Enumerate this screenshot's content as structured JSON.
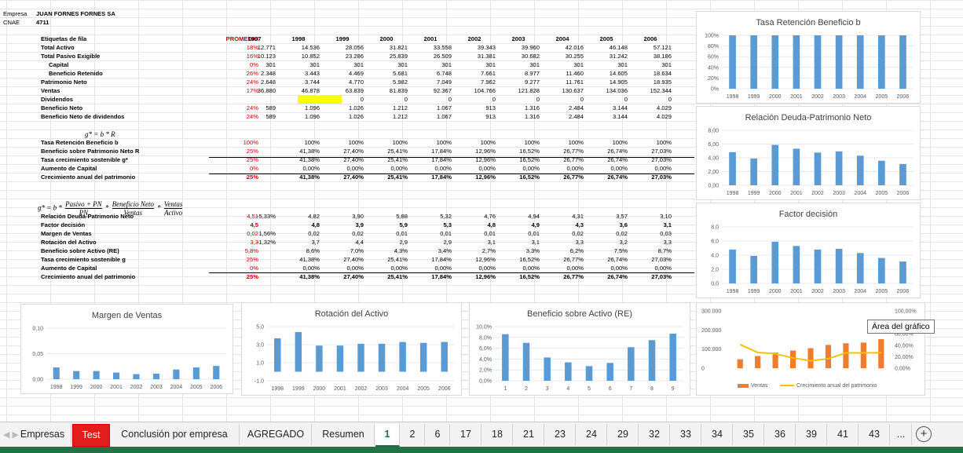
{
  "header": {
    "empresa_label": "Empresa",
    "empresa": "JUAN FORNES FORNES SA",
    "cnae_label": "CNAE",
    "cnae": "4711"
  },
  "table1": {
    "head": [
      "Etiquetas de fila",
      "PROMEDIO",
      "1997",
      "1998",
      "1999",
      "2000",
      "2001",
      "2002",
      "2003",
      "2004",
      "2005",
      "2006"
    ],
    "rows": [
      {
        "label": "Total Activo",
        "avg": "18%",
        "vals": [
          "12.771",
          "14.536",
          "28.056",
          "31.821",
          "33.558",
          "39.343",
          "39.960",
          "42.016",
          "46.148",
          "57.121"
        ]
      },
      {
        "label": "Total Pasivo Exigible",
        "avg": "16%",
        "vals": [
          "10.123",
          "10.852",
          "23.286",
          "25.839",
          "26.509",
          "31.381",
          "30.682",
          "30.255",
          "31.242",
          "38.186"
        ]
      },
      {
        "label": "Capital",
        "avg": "0%",
        "vals": [
          "301",
          "301",
          "301",
          "301",
          "301",
          "301",
          "301",
          "301",
          "301",
          "301"
        ]
      },
      {
        "label": "Beneficio Retenido",
        "avg": "26%",
        "vals": [
          "2.348",
          "3.443",
          "4.469",
          "5.681",
          "6.748",
          "7.661",
          "8.977",
          "11.460",
          "14.605",
          "18.634"
        ]
      },
      {
        "label": "Patrimonio Neto",
        "avg": "24%",
        "vals": [
          "2.648",
          "3.744",
          "4.770",
          "5.982",
          "7.049",
          "7.962",
          "9.277",
          "11.761",
          "14.905",
          "18.935"
        ]
      },
      {
        "label": "Ventas",
        "avg": "17%",
        "vals": [
          "36.880",
          "46.878",
          "63.839",
          "81.839",
          "92.367",
          "104.766",
          "121.828",
          "130.637",
          "134.036",
          "152.344"
        ]
      },
      {
        "label": "Dividendos",
        "avg": "",
        "vals": [
          "",
          "0",
          "0",
          "0",
          "0",
          "0",
          "0",
          "0",
          "0",
          "0"
        ]
      },
      {
        "label": "Beneficio Neto",
        "avg": "24%",
        "vals": [
          "589",
          "1.096",
          "1.026",
          "1.212",
          "1.067",
          "913",
          "1.316",
          "2.484",
          "3.144",
          "4.029"
        ]
      },
      {
        "label": "Beneficio Neto de dividendos",
        "avg": "24%",
        "vals": [
          "589",
          "1.096",
          "1.026",
          "1.212",
          "1.067",
          "913",
          "1.316",
          "2.484",
          "3.144",
          "4.029"
        ]
      }
    ]
  },
  "formula1": "g* = b * R",
  "table2": {
    "rows": [
      {
        "label": "Tasa Retención Beneficio b",
        "avg": "100%",
        "vals": [
          "",
          "100%",
          "100%",
          "100%",
          "100%",
          "100%",
          "100%",
          "100%",
          "100%",
          "100%"
        ]
      },
      {
        "label": "Beneficio sobre Patrimonio Neto R",
        "avg": "25%",
        "vals": [
          "",
          "41,38%",
          "27,40%",
          "25,41%",
          "17,84%",
          "12,96%",
          "16,52%",
          "26,77%",
          "26,74%",
          "27,03%"
        ]
      },
      {
        "label": "Tasa crecimiento sostenible g*",
        "avg": "25%",
        "vals": [
          "",
          "41,38%",
          "27,40%",
          "25,41%",
          "17,84%",
          "12,96%",
          "16,52%",
          "26,77%",
          "26,74%",
          "27,03%"
        ]
      },
      {
        "label": "Aumento de Capital",
        "avg": "0%",
        "vals": [
          "",
          "0,00%",
          "0,00%",
          "0,00%",
          "0,00%",
          "0,00%",
          "0,00%",
          "0,00%",
          "0,00%",
          "0,00%"
        ]
      },
      {
        "label": "Crecimiento anual del patrimonio",
        "avg": "25%",
        "vals": [
          "",
          "41,38%",
          "27,40%",
          "25,41%",
          "17,84%",
          "12,96%",
          "16,52%",
          "26,77%",
          "26,74%",
          "27,03%"
        ]
      }
    ]
  },
  "formula2": {
    "lhs": "g* = b *",
    "f1n": "Pasivo + PN",
    "f1d": "PN",
    "f2n": "Beneficio Neto",
    "f2d": "Ventas",
    "f3n": "Ventas",
    "f3d": "Activo"
  },
  "table3": {
    "rows": [
      {
        "label": "Relación Deuda-Patrimonio Neto",
        "avg": "4,51",
        "vals": [
          "-5,33%",
          "4,82",
          "3,90",
          "5,88",
          "5,32",
          "4,76",
          "4,94",
          "4,31",
          "3,57",
          "3,10"
        ]
      },
      {
        "label": "Factor decisión",
        "avg": "4,5",
        "vals": [
          "",
          "4,8",
          "3,9",
          "5,9",
          "5,3",
          "4,8",
          "4,9",
          "4,3",
          "3,6",
          "3,1"
        ]
      },
      {
        "label": "Margen de Ventas",
        "avg": "0,02",
        "vals": [
          "1,56%",
          "0,02",
          "0,02",
          "0,01",
          "0,01",
          "0,01",
          "0,01",
          "0,02",
          "0,02",
          "0,03"
        ]
      },
      {
        "label": "Rotación del Activo",
        "avg": "3,3",
        "vals": [
          "-1,32%",
          "3,7",
          "4,4",
          "2,9",
          "2,9",
          "3,1",
          "3,1",
          "3,3",
          "3,2",
          "3,3"
        ]
      },
      {
        "label": "Beneficio sobre Activo (RE)",
        "avg": "5,8%",
        "vals": [
          "",
          "8,6%",
          "7,0%",
          "4,3%",
          "3,4%",
          "2,7%",
          "3,3%",
          "6,2%",
          "7,5%",
          "8,7%"
        ]
      },
      {
        "label": "Tasa crecimiento sostenible g",
        "avg": "25%",
        "vals": [
          "",
          "41,38%",
          "27,40%",
          "25,41%",
          "17,84%",
          "12,96%",
          "16,52%",
          "26,77%",
          "26,74%",
          "27,03%"
        ]
      },
      {
        "label": "Aumento de Capital",
        "avg": "0%",
        "vals": [
          "",
          "0,00%",
          "0,00%",
          "0,00%",
          "0,00%",
          "0,00%",
          "0,00%",
          "0,00%",
          "0,00%",
          "0,00%"
        ]
      },
      {
        "label": "Crecimiento anual del patrimonio",
        "avg": "25%",
        "vals": [
          "",
          "41,38%",
          "27,40%",
          "25,41%",
          "17,84%",
          "12,96%",
          "16,52%",
          "26,77%",
          "26,74%",
          "27,03%"
        ]
      }
    ]
  },
  "tooltip": "Área del gráfico",
  "tabs": [
    "Empresas",
    "Test",
    "Conclusión por empresa",
    "AGREGADO",
    "Resumen",
    "1",
    "2",
    "6",
    "17",
    "18",
    "21",
    "23",
    "24",
    "29",
    "32",
    "33",
    "34",
    "35",
    "36",
    "39",
    "41",
    "43",
    "..."
  ],
  "add_sheet": "+",
  "bar_color": "#5b9bd5",
  "chart_data": [
    {
      "id": "c1",
      "type": "bar",
      "title": "Tasa Retención Beneficio b",
      "categories": [
        "1998",
        "1999",
        "2000",
        "2001",
        "2002",
        "2003",
        "2004",
        "2005",
        "2006"
      ],
      "values": [
        100,
        100,
        100,
        100,
        100,
        100,
        100,
        100,
        100
      ],
      "ylim": [
        0,
        100
      ],
      "yticks": [
        "0%",
        "20%",
        "40%",
        "60%",
        "80%",
        "100%"
      ]
    },
    {
      "id": "c2",
      "type": "bar",
      "title": "Relación Deuda-Patrimonio Neto",
      "categories": [
        "1998",
        "1999",
        "2000",
        "2001",
        "2002",
        "2003",
        "2004",
        "2005",
        "2006"
      ],
      "values": [
        4.82,
        3.9,
        5.88,
        5.32,
        4.76,
        4.94,
        4.31,
        3.57,
        3.1
      ],
      "ylim": [
        0,
        8
      ],
      "yticks": [
        "0,00",
        "2,00",
        "4,00",
        "6,00",
        "8,00"
      ]
    },
    {
      "id": "c3",
      "type": "bar",
      "title": "Factor decisión",
      "categories": [
        "1998",
        "1999",
        "2000",
        "2001",
        "2002",
        "2003",
        "2004",
        "2005",
        "2006"
      ],
      "values": [
        4.8,
        3.9,
        5.9,
        5.3,
        4.8,
        4.9,
        4.3,
        3.6,
        3.1
      ],
      "ylim": [
        0,
        8
      ],
      "yticks": [
        "0,0",
        "2,0",
        "4,0",
        "6,0",
        "8,0"
      ]
    },
    {
      "id": "c4",
      "type": "bar",
      "title": "Margen de Ventas",
      "categories": [
        "1998",
        "1999",
        "2000",
        "2001",
        "2002",
        "2003",
        "2004",
        "2005",
        "2006"
      ],
      "values": [
        0.023,
        0.016,
        0.016,
        0.013,
        0.01,
        0.011,
        0.019,
        0.023,
        0.026
      ],
      "ylim": [
        0,
        0.1
      ],
      "yticks": [
        "0,00",
        "0,05",
        "0,10"
      ]
    },
    {
      "id": "c5",
      "type": "bar",
      "title": "Rotación del Activo",
      "categories": [
        "1998",
        "1999",
        "2000",
        "2001",
        "2002",
        "2003",
        "2004",
        "2005",
        "2006"
      ],
      "values": [
        3.7,
        4.4,
        2.9,
        2.9,
        3.1,
        3.1,
        3.3,
        3.2,
        3.3
      ],
      "ylim": [
        -1,
        5
      ],
      "yticks": [
        "-1,0",
        "1,0",
        "3,0",
        "5,0"
      ]
    },
    {
      "id": "c6",
      "type": "bar",
      "title": "Beneficio sobre Activo (RE)",
      "categories": [
        "1",
        "2",
        "3",
        "4",
        "5",
        "6",
        "7",
        "8",
        "9"
      ],
      "values": [
        8.6,
        7.0,
        4.3,
        3.4,
        2.7,
        3.3,
        6.2,
        7.5,
        8.7
      ],
      "ylim": [
        0,
        10
      ],
      "yticks": [
        "0,0%",
        "2,0%",
        "4,0%",
        "6,0%",
        "8,0%",
        "10,0%"
      ]
    },
    {
      "id": "c7",
      "type": "bar+line",
      "title": "",
      "categories": [
        "1998",
        "1999",
        "2000",
        "2001",
        "2002",
        "2003",
        "2004",
        "2005",
        "2006"
      ],
      "series": [
        {
          "name": "Ventas",
          "type": "bar",
          "axis": "left",
          "color": "#ed7d31",
          "values": [
            46878,
            63839,
            81839,
            92367,
            104766,
            121828,
            130637,
            134036,
            152344
          ]
        },
        {
          "name": "Crecimiento anual del patrimonio",
          "type": "line",
          "axis": "right",
          "color": "#ffc000",
          "values": [
            41.38,
            27.4,
            25.41,
            17.84,
            12.96,
            16.52,
            26.77,
            26.74,
            27.03
          ]
        }
      ],
      "ylim": [
        0,
        300000
      ],
      "yticks": [
        "0",
        "100.000",
        "200.000",
        "300.000"
      ],
      "y2lim": [
        0,
        100
      ],
      "y2ticks": [
        "0,00%",
        "20,00%",
        "40,00%",
        "60,00%",
        "80,00%",
        "100,00%"
      ]
    }
  ]
}
